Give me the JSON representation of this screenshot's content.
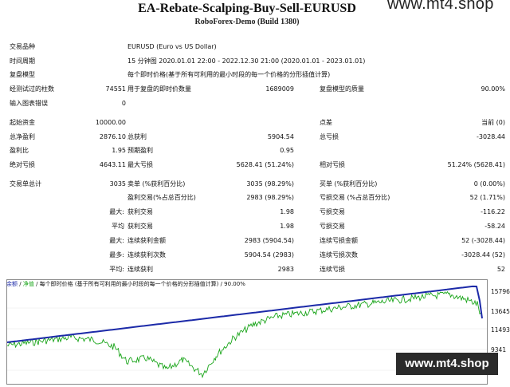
{
  "header": {
    "title": "EA-Rebate-Scalping-Buy-Sell-EURUSD",
    "subtitle": "RoboForex-Demo (Build 1380)",
    "watermark_top": "www.mt4.shop"
  },
  "rows": [
    {
      "id": "symbol",
      "cells": [
        {
          "k": "label",
          "t": "交易品种"
        },
        {
          "k": "v1",
          "t": "EURUSD (Euro vs US Dollar)"
        }
      ]
    },
    {
      "id": "period",
      "cells": [
        {
          "k": "label",
          "t": "时间周期"
        },
        {
          "k": "v1",
          "t": "15 分钟图 2020.01.01 22:00 - 2022.12.30 21:00 (2020.01.01 - 2023.01.01)"
        }
      ]
    },
    {
      "id": "model",
      "cells": [
        {
          "k": "label",
          "t": "复盘模型"
        },
        {
          "k": "v1",
          "t": "每个即时价格(基于所有可利用的最小时段的每一个价格的分形插值计算)"
        }
      ]
    },
    {
      "id": "bars",
      "cells": [
        {
          "k": "label",
          "t": "经测试过的柱数"
        },
        {
          "k": "n1",
          "t": "74551"
        },
        {
          "k": "l2",
          "t": "用于复盘的即时价数量"
        },
        {
          "k": "n2",
          "t": "1689009"
        },
        {
          "k": "l3",
          "t": "复盘模型的质量"
        },
        {
          "k": "n3",
          "t": "90.00%"
        }
      ]
    },
    {
      "id": "errors",
      "cells": [
        {
          "k": "label",
          "t": "输入图表错误"
        },
        {
          "k": "n1",
          "t": "0"
        }
      ]
    },
    {
      "id": "deposit",
      "cells": [
        {
          "k": "label",
          "t": "起始资金"
        },
        {
          "k": "n1",
          "t": "10000.00"
        },
        {
          "k": "l3",
          "t": "点差"
        },
        {
          "k": "n3",
          "t": "当前 (0)"
        }
      ]
    },
    {
      "id": "profit",
      "cells": [
        {
          "k": "label",
          "t": "总净盈利"
        },
        {
          "k": "n1",
          "t": "2876.10"
        },
        {
          "k": "l2",
          "t": "总获利"
        },
        {
          "k": "n2",
          "t": "5904.54"
        },
        {
          "k": "l3",
          "t": "总亏损"
        },
        {
          "k": "n3",
          "t": "-3028.44"
        }
      ]
    },
    {
      "id": "pf",
      "cells": [
        {
          "k": "label",
          "t": "盈利比"
        },
        {
          "k": "n1",
          "t": "1.95"
        },
        {
          "k": "l2",
          "t": "预期盈利"
        },
        {
          "k": "n2",
          "t": "0.95"
        }
      ]
    },
    {
      "id": "dd",
      "cells": [
        {
          "k": "label",
          "t": "绝对亏损"
        },
        {
          "k": "n1",
          "t": "4643.11"
        },
        {
          "k": "l2",
          "t": "最大亏损"
        },
        {
          "k": "n2",
          "t": "5628.41 (51.24%)"
        },
        {
          "k": "l3",
          "t": "相对亏损"
        },
        {
          "k": "n3",
          "t": "51.24% (5628.41)"
        }
      ]
    },
    {
      "id": "trades",
      "cells": [
        {
          "k": "label",
          "t": "交易单总计"
        },
        {
          "k": "n1",
          "t": "3035"
        },
        {
          "k": "l2",
          "t": "卖单 (%获利百分比)"
        },
        {
          "k": "n2",
          "t": "3035 (98.29%)"
        },
        {
          "k": "l3",
          "t": "买单 (%获利百分比)"
        },
        {
          "k": "n3",
          "t": "0 (0.00%)"
        }
      ]
    },
    {
      "id": "winloss",
      "cells": [
        {
          "k": "l2",
          "t": "盈利交易(%占总百分比)"
        },
        {
          "k": "n2",
          "t": "2983 (98.29%)"
        },
        {
          "k": "l3",
          "t": "亏损交易 (%占总百分比)"
        },
        {
          "k": "n3",
          "t": "52 (1.71%)"
        }
      ]
    },
    {
      "id": "largest",
      "cells": [
        {
          "k": "sub",
          "t": "最大:"
        },
        {
          "k": "l2",
          "t": "获利交易"
        },
        {
          "k": "n2",
          "t": "1.98"
        },
        {
          "k": "l3",
          "t": "亏损交易"
        },
        {
          "k": "n3",
          "t": "-116.22"
        }
      ]
    },
    {
      "id": "average",
      "cells": [
        {
          "k": "sub",
          "t": "平均"
        },
        {
          "k": "l2",
          "t": "获利交易"
        },
        {
          "k": "n2",
          "t": "1.98"
        },
        {
          "k": "l3",
          "t": "亏损交易"
        },
        {
          "k": "n3",
          "t": "-58.24"
        }
      ]
    },
    {
      "id": "maxcons",
      "cells": [
        {
          "k": "sub",
          "t": "最大:"
        },
        {
          "k": "l2",
          "t": "连续获利金额"
        },
        {
          "k": "n2",
          "t": "2983 (5904.54)"
        },
        {
          "k": "l3",
          "t": "连续亏损金额"
        },
        {
          "k": "n3",
          "t": "52 (-3028.44)"
        }
      ]
    },
    {
      "id": "maxconsnum",
      "cells": [
        {
          "k": "sub",
          "t": "最多:"
        },
        {
          "k": "l2",
          "t": "连续获利次数"
        },
        {
          "k": "n2",
          "t": "5904.54 (2983)"
        },
        {
          "k": "l3",
          "t": "连续亏损次数"
        },
        {
          "k": "n3",
          "t": "-3028.44 (52)"
        }
      ]
    },
    {
      "id": "avgcons",
      "cells": [
        {
          "k": "sub",
          "t": "平均:"
        },
        {
          "k": "l2",
          "t": "连续获利"
        },
        {
          "k": "n2",
          "t": "2983"
        },
        {
          "k": "l3",
          "t": "连续亏损"
        },
        {
          "k": "n3",
          "t": "52"
        }
      ]
    }
  ],
  "chart": {
    "legend": {
      "balance": "余额",
      "sep1": "/",
      "equity": "净值",
      "sep2": "/",
      "model": "每个即时价格 (基于所有可利用的最小时段的每一个价格的分形插值计算)",
      "sep3": "/",
      "quality": "90.00%"
    },
    "y_labels": [
      "15796",
      "13645",
      "11493",
      "9341"
    ],
    "balance_color": "#1c2aa8",
    "equity_color": "#1aa51a"
  },
  "watermark_bottom": "www.mt4.shop"
}
